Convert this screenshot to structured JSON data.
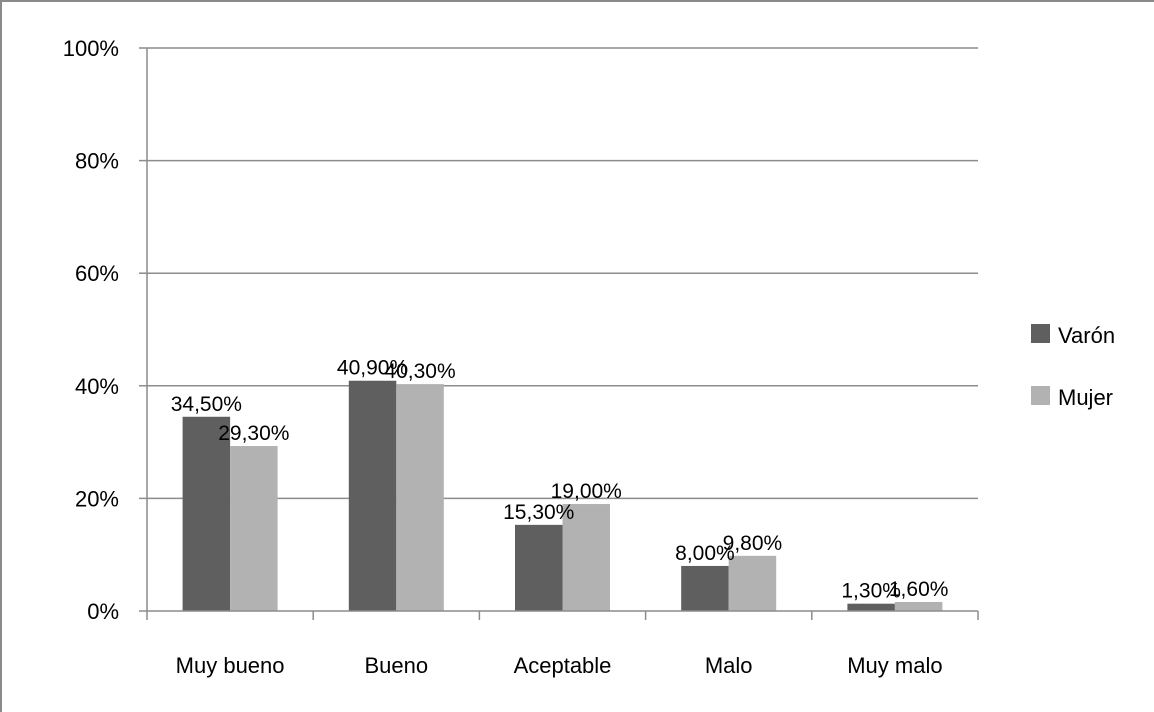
{
  "chart_data": {
    "type": "bar",
    "categories": [
      "Muy bueno",
      "Bueno",
      "Aceptable",
      "Malo",
      "Muy malo"
    ],
    "series": [
      {
        "name": "Varón",
        "values": [
          34.5,
          40.9,
          15.3,
          8.0,
          1.3
        ],
        "labels": [
          "34,50%",
          "40,90%",
          "15,30%",
          "8,00%",
          "1,30%"
        ],
        "color": "#5f5f5f"
      },
      {
        "name": "Mujer",
        "values": [
          29.3,
          40.3,
          19.0,
          9.8,
          1.6
        ],
        "labels": [
          "29,30%",
          "40,30%",
          "19,00%",
          "9,80%",
          "1,60%"
        ],
        "color": "#b2b2b2"
      }
    ],
    "ylim": [
      0,
      100
    ],
    "yticks": [
      0,
      20,
      40,
      60,
      80,
      100
    ],
    "ytick_labels": [
      "0%",
      "20%",
      "40%",
      "60%",
      "80%",
      "100%"
    ],
    "grid": true,
    "legend_position": "right",
    "gridline_color": "#8c8c8c"
  }
}
